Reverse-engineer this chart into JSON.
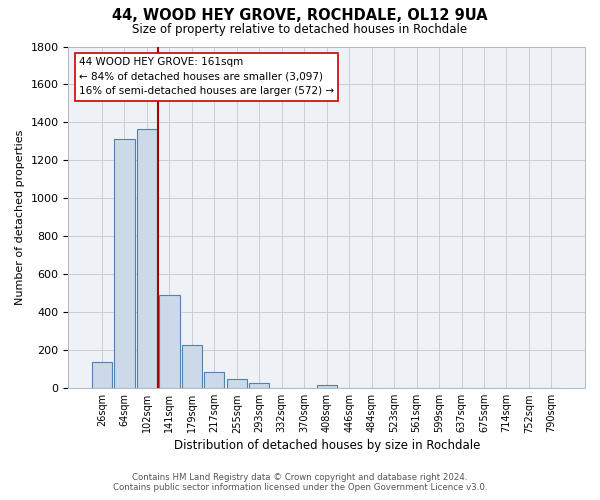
{
  "title": "44, WOOD HEY GROVE, ROCHDALE, OL12 9UA",
  "subtitle": "Size of property relative to detached houses in Rochdale",
  "xlabel": "Distribution of detached houses by size in Rochdale",
  "ylabel": "Number of detached properties",
  "bar_labels": [
    "26sqm",
    "64sqm",
    "102sqm",
    "141sqm",
    "179sqm",
    "217sqm",
    "255sqm",
    "293sqm",
    "332sqm",
    "370sqm",
    "408sqm",
    "446sqm",
    "484sqm",
    "523sqm",
    "561sqm",
    "599sqm",
    "637sqm",
    "675sqm",
    "714sqm",
    "752sqm",
    "790sqm"
  ],
  "bar_values": [
    140,
    1315,
    1365,
    490,
    230,
    85,
    50,
    25,
    0,
    0,
    15,
    0,
    0,
    0,
    0,
    0,
    0,
    0,
    0,
    0,
    0
  ],
  "bar_color": "#ccd9e8",
  "bar_edge_color": "#5580aa",
  "property_line_color": "#aa0000",
  "annotation_title": "44 WOOD HEY GROVE: 161sqm",
  "annotation_line1": "← 84% of detached houses are smaller (3,097)",
  "annotation_line2": "16% of semi-detached houses are larger (572) →",
  "ylim": [
    0,
    1800
  ],
  "yticks": [
    0,
    200,
    400,
    600,
    800,
    1000,
    1200,
    1400,
    1600,
    1800
  ],
  "footer_line1": "Contains HM Land Registry data © Crown copyright and database right 2024.",
  "footer_line2": "Contains public sector information licensed under the Open Government Licence v3.0.",
  "background_color": "#ffffff",
  "grid_color": "#c0cad4",
  "plot_bg_color": "#eef2f7"
}
